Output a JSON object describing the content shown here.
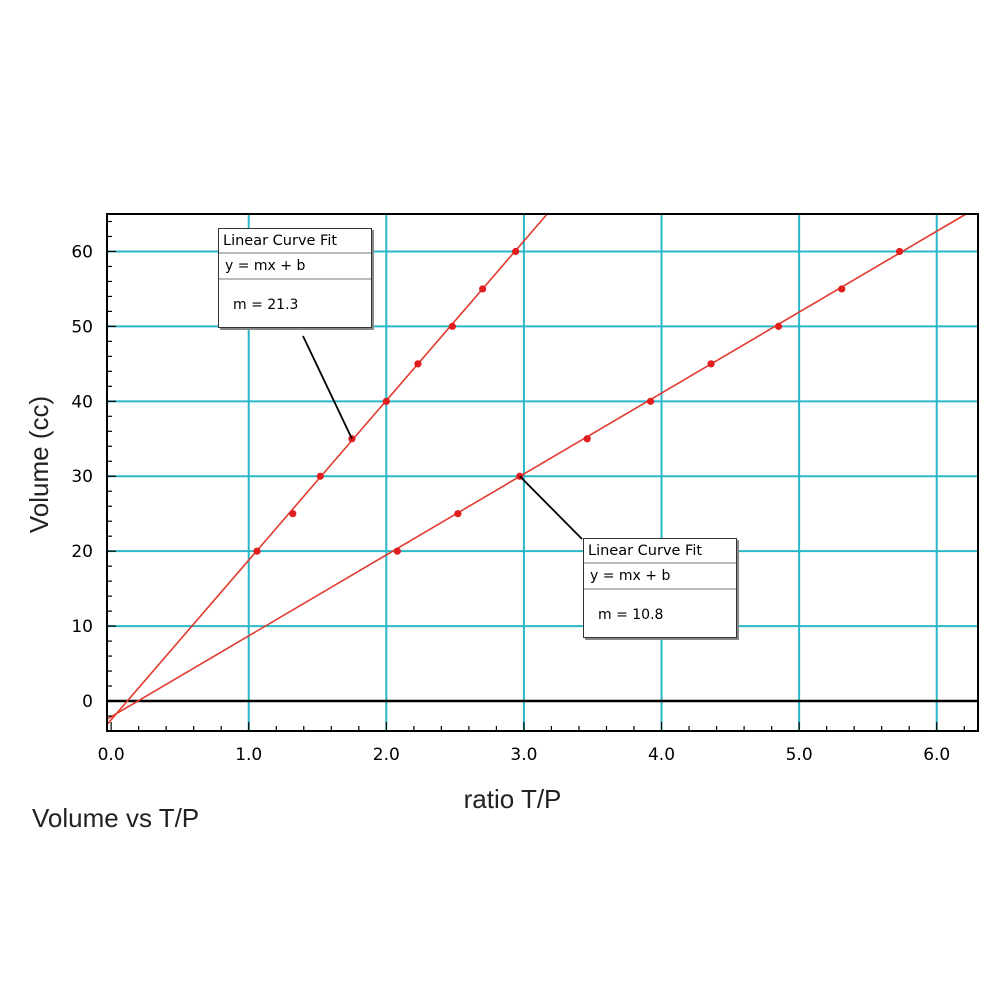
{
  "caption": "Volume vs T/P",
  "chart_data": {
    "type": "scatter",
    "xlabel": "ratio T/P",
    "ylabel": "Volume (cc)",
    "xlim": [
      -0.03,
      6.3
    ],
    "ylim": [
      -4,
      65
    ],
    "xticks": [
      "0.0",
      "1.0",
      "2.0",
      "3.0",
      "4.0",
      "5.0",
      "6.0"
    ],
    "yticks": [
      "0",
      "10",
      "20",
      "30",
      "40",
      "50",
      "60"
    ],
    "grid": true,
    "series": [
      {
        "x": [
          1.06,
          1.32,
          1.52,
          1.75,
          2.0,
          2.23,
          2.48,
          2.7,
          2.94
        ],
        "y": [
          20,
          25,
          30,
          35,
          40,
          45,
          50,
          55,
          60
        ],
        "fit": {
          "title": "Linear Curve Fit",
          "equation": "y = mx + b",
          "slope": "m = 21.3",
          "m": 21.3,
          "b": -2.5
        }
      },
      {
        "x": [
          2.08,
          2.52,
          2.97,
          3.46,
          3.92,
          4.36,
          4.85,
          5.31,
          5.73
        ],
        "y": [
          20,
          25,
          30,
          35,
          40,
          45,
          50,
          55,
          60
        ],
        "fit": {
          "title": "Linear Curve Fit",
          "equation": "y = mx + b",
          "slope": "m = 10.8",
          "m": 10.8,
          "b": -2.1
        }
      }
    ]
  }
}
